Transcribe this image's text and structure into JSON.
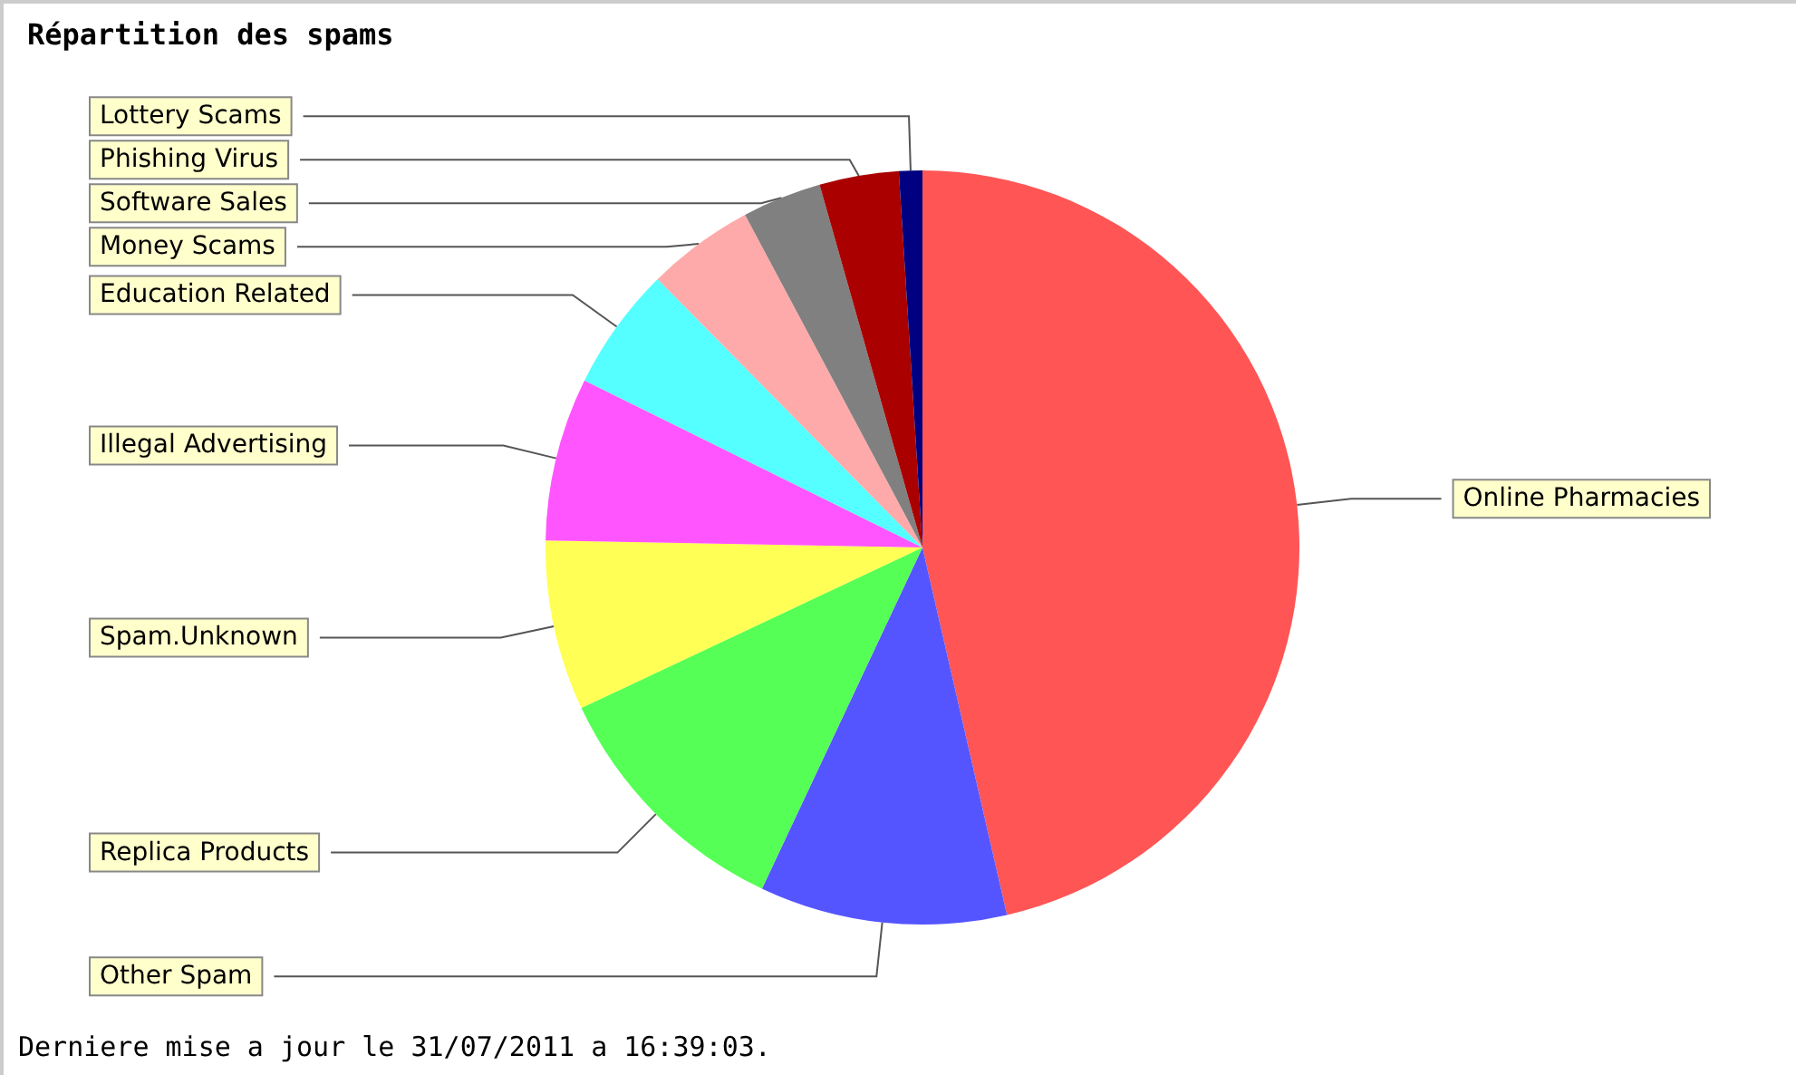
{
  "chart_data": {
    "type": "pie",
    "title": "Répartition des spams",
    "categories": [
      "Online Pharmacies",
      "Other Spam",
      "Replica Products",
      "Spam.Unknown",
      "Illegal Advertising",
      "Education Related",
      "Money Scams",
      "Software Sales",
      "Phishing Virus",
      "Lottery Scams"
    ],
    "values": [
      46.4,
      10.6,
      11,
      7.3,
      7,
      5.3,
      4.6,
      3.4,
      3.4,
      1
    ],
    "colors": [
      "#ff5555",
      "#5555ff",
      "#55ff55",
      "#ffff55",
      "#ff55ff",
      "#55ffff",
      "#ffaaaa",
      "#808080",
      "#aa0000",
      "#000080"
    ],
    "annotations": [
      "Derniere mise a jour le 31/07/2011 a 16:39:03."
    ],
    "legend": false
  }
}
